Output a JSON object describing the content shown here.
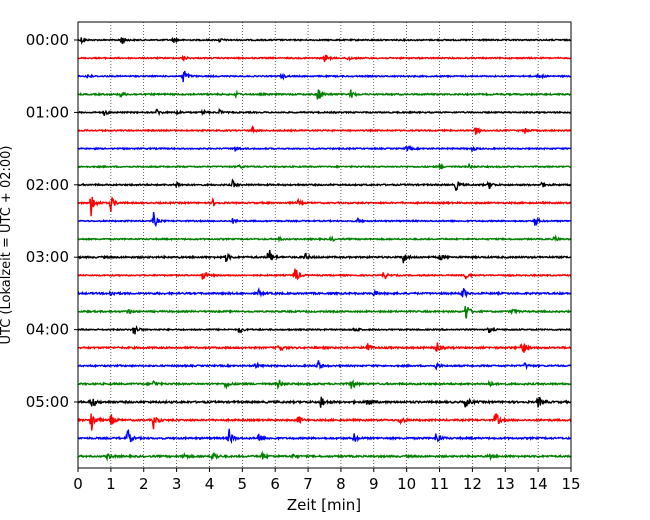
{
  "chart_data": {
    "type": "line",
    "title": "",
    "xlabel": "Zeit  [min]",
    "ylabel": "UTC (Lokalzeit = UTC + 02:00)",
    "xlim": [
      0,
      15
    ],
    "x_ticks": [
      0,
      1,
      2,
      3,
      4,
      5,
      6,
      7,
      8,
      9,
      10,
      11,
      12,
      13,
      14,
      15
    ],
    "y_tick_labels": [
      "00:00",
      "01:00",
      "02:00",
      "03:00",
      "04:00",
      "05:00"
    ],
    "y_tick_trace_index": [
      0,
      4,
      8,
      12,
      16,
      20
    ],
    "vertical_grid": "dotted",
    "trace_colors": [
      "#000000",
      "#ff0000",
      "#0000ff",
      "#008000"
    ],
    "traces": [
      {
        "start": "00:00",
        "noise": 0.6,
        "events": [
          [
            1.3,
            3
          ],
          [
            0.1,
            1.5
          ],
          [
            2.9,
            1.2
          ],
          [
            4.3,
            1
          ]
        ]
      },
      {
        "start": "00:15",
        "noise": 0.6,
        "events": [
          [
            7.5,
            2
          ],
          [
            8.2,
            1.5
          ],
          [
            3.2,
            1.2
          ]
        ]
      },
      {
        "start": "00:30",
        "noise": 0.6,
        "events": [
          [
            3.2,
            5
          ],
          [
            0.3,
            1.5
          ],
          [
            6.2,
            1.2
          ],
          [
            14,
            1.5
          ]
        ]
      },
      {
        "start": "00:45",
        "noise": 0.7,
        "events": [
          [
            7.3,
            4
          ],
          [
            8.3,
            2
          ],
          [
            1.3,
            1.3
          ],
          [
            4.8,
            1
          ]
        ]
      },
      {
        "start": "01:00",
        "noise": 0.6,
        "events": [
          [
            0.8,
            1.5
          ],
          [
            2.4,
            1.5
          ],
          [
            3.0,
            1.3
          ],
          [
            3.8,
            1.2
          ],
          [
            4.3,
            1.2
          ]
        ]
      },
      {
        "start": "01:15",
        "noise": 0.6,
        "events": [
          [
            5.3,
            1.8
          ],
          [
            12.1,
            2
          ],
          [
            13.6,
            1.8
          ]
        ]
      },
      {
        "start": "01:30",
        "noise": 0.6,
        "events": [
          [
            4.8,
            1.3
          ],
          [
            10.0,
            1.5
          ],
          [
            12.0,
            1.2
          ]
        ]
      },
      {
        "start": "01:45",
        "noise": 0.6,
        "events": [
          [
            11.0,
            1.3
          ],
          [
            11.9,
            1.3
          ],
          [
            4.9,
            1
          ]
        ]
      },
      {
        "start": "02:00",
        "noise": 0.7,
        "events": [
          [
            3.0,
            1.5
          ],
          [
            4.7,
            2
          ],
          [
            11.5,
            2.5
          ],
          [
            12.5,
            2
          ],
          [
            14.1,
            1.5
          ]
        ]
      },
      {
        "start": "02:15",
        "noise": 0.7,
        "events": [
          [
            0.4,
            6
          ],
          [
            1.0,
            4
          ],
          [
            4.1,
            1.5
          ],
          [
            6.7,
            1.2
          ]
        ]
      },
      {
        "start": "02:30",
        "noise": 0.6,
        "events": [
          [
            2.3,
            4
          ],
          [
            13.9,
            2.5
          ],
          [
            4.7,
            1.2
          ],
          [
            8.5,
            1.2
          ]
        ]
      },
      {
        "start": "02:45",
        "noise": 0.6,
        "events": [
          [
            7.7,
            1.2
          ],
          [
            14.5,
            1.3
          ],
          [
            6.1,
            1
          ]
        ]
      },
      {
        "start": "03:00",
        "noise": 0.8,
        "events": [
          [
            5.8,
            5
          ],
          [
            9.9,
            3
          ],
          [
            4.5,
            2
          ],
          [
            6.9,
            2
          ],
          [
            11.0,
            1.8
          ]
        ]
      },
      {
        "start": "03:15",
        "noise": 0.6,
        "events": [
          [
            3.8,
            3.5
          ],
          [
            6.6,
            5
          ],
          [
            9.3,
            2
          ],
          [
            11.8,
            1.8
          ]
        ]
      },
      {
        "start": "03:30",
        "noise": 0.8,
        "events": [
          [
            11.7,
            3
          ],
          [
            1.0,
            1.5
          ],
          [
            5.5,
            1.5
          ],
          [
            9.0,
            1.5
          ]
        ]
      },
      {
        "start": "03:45",
        "noise": 0.7,
        "events": [
          [
            11.8,
            5
          ],
          [
            1.5,
            1.5
          ],
          [
            13.2,
            1.5
          ]
        ]
      },
      {
        "start": "04:00",
        "noise": 0.6,
        "events": [
          [
            1.7,
            3.5
          ],
          [
            4.9,
            1.8
          ],
          [
            8.4,
            1.8
          ],
          [
            12.5,
            1.5
          ]
        ]
      },
      {
        "start": "04:15",
        "noise": 0.8,
        "events": [
          [
            6.1,
            2.5
          ],
          [
            8.8,
            3
          ],
          [
            10.9,
            3.5
          ],
          [
            13.5,
            5
          ]
        ]
      },
      {
        "start": "04:30",
        "noise": 0.7,
        "events": [
          [
            7.3,
            3
          ],
          [
            10.9,
            1.5
          ],
          [
            5.4,
            1.5
          ],
          [
            13.6,
            1.3
          ]
        ]
      },
      {
        "start": "04:45",
        "noise": 0.8,
        "events": [
          [
            4.5,
            2
          ],
          [
            6.1,
            2.5
          ],
          [
            8.3,
            3
          ],
          [
            2.3,
            1.5
          ],
          [
            12.5,
            1.5
          ]
        ]
      },
      {
        "start": "05:00",
        "noise": 0.9,
        "events": [
          [
            0.4,
            4
          ],
          [
            7.4,
            3.5
          ],
          [
            8.8,
            2.5
          ],
          [
            11.8,
            3
          ],
          [
            14.0,
            3
          ]
        ]
      },
      {
        "start": "05:15",
        "noise": 0.8,
        "events": [
          [
            0.4,
            7
          ],
          [
            1.0,
            3
          ],
          [
            2.3,
            4
          ],
          [
            6.7,
            2
          ],
          [
            9.8,
            2
          ],
          [
            12.7,
            5
          ]
        ]
      },
      {
        "start": "05:30",
        "noise": 0.8,
        "events": [
          [
            1.5,
            5
          ],
          [
            4.6,
            4
          ],
          [
            5.5,
            3
          ],
          [
            8.4,
            2
          ],
          [
            10.9,
            4
          ]
        ]
      },
      {
        "start": "05:45",
        "noise": 0.8,
        "events": [
          [
            0.9,
            1.5
          ],
          [
            3.2,
            1.5
          ],
          [
            4.1,
            3
          ],
          [
            5.6,
            1.5
          ],
          [
            6.5,
            1.5
          ],
          [
            12.5,
            1.5
          ]
        ]
      }
    ]
  }
}
